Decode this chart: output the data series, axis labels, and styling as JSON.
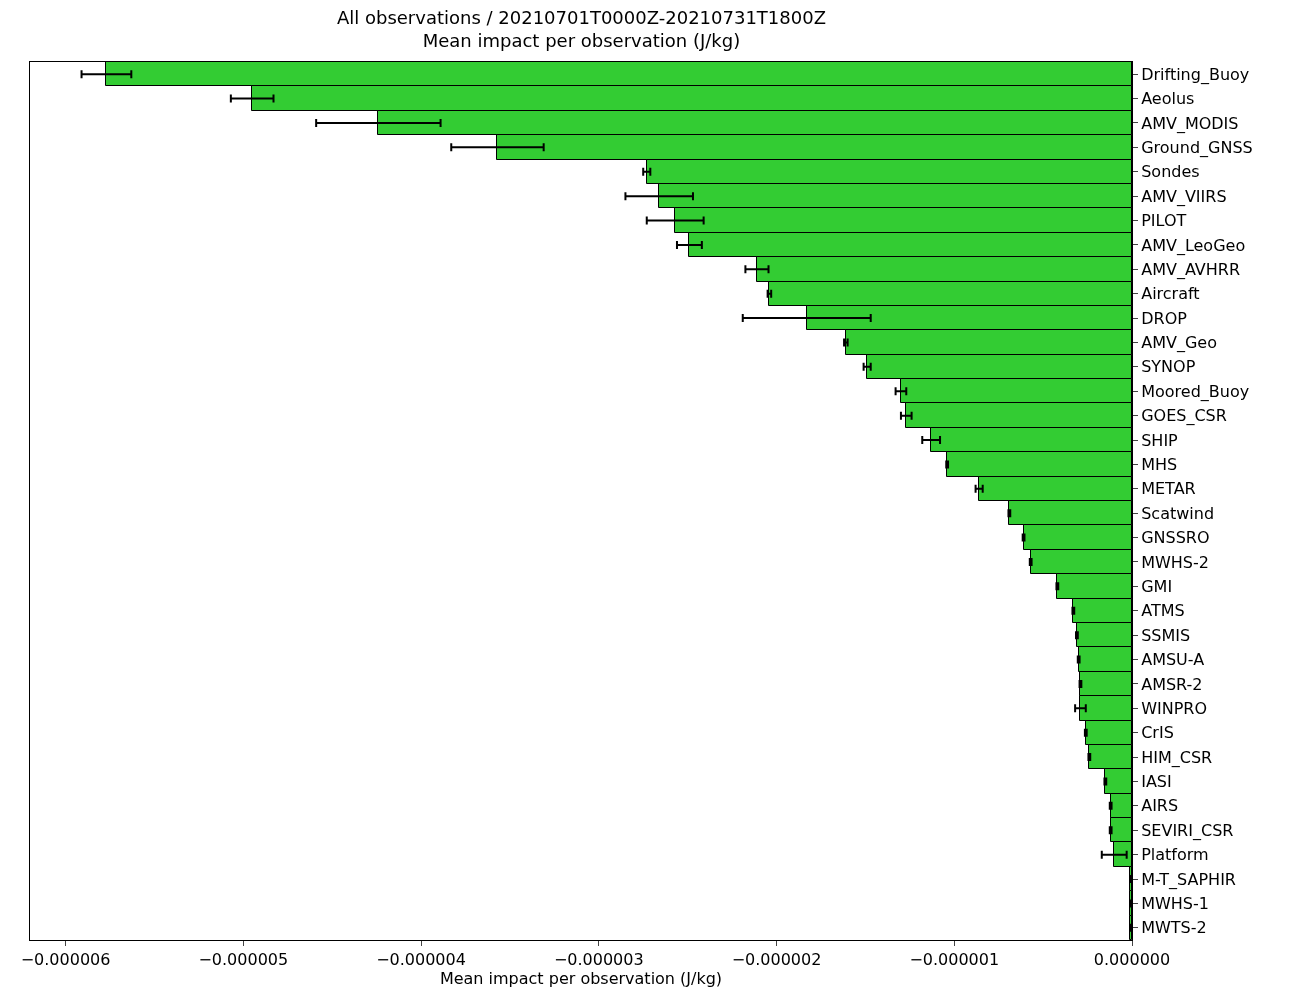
{
  "chart_data": {
    "type": "bar",
    "orientation": "horizontal",
    "title": "All observations / 20210701T0000Z-20210731T1800Z\nMean impact per observation (J/kg)",
    "xlabel": "Mean impact per observation (J/kg)",
    "categories": [
      "Drifting_Buoy",
      "Aeolus",
      "AMV_MODIS",
      "Ground_GNSS",
      "Sondes",
      "AMV_VIIRS",
      "PILOT",
      "AMV_LeoGeo",
      "AMV_AVHRR",
      "Aircraft",
      "DROP",
      "AMV_Geo",
      "SYNOP",
      "Moored_Buoy",
      "GOES_CSR",
      "SHIP",
      "MHS",
      "METAR",
      "Scatwind",
      "GNSSRO",
      "MWHS-2",
      "GMI",
      "ATMS",
      "SSMIS",
      "AMSU-A",
      "AMSR-2",
      "WINPRO",
      "CrIS",
      "HIM_CSR",
      "IASI",
      "AIRS",
      "SEVIRI_CSR",
      "Platform",
      "M-T_SAPHIR",
      "MWHS-1",
      "MWTS-2"
    ],
    "values": [
      -5.77e-06,
      -4.95e-06,
      -4.24e-06,
      -3.57e-06,
      -2.73e-06,
      -2.66e-06,
      -2.57e-06,
      -2.49e-06,
      -2.11e-06,
      -2.04e-06,
      -1.83e-06,
      -1.61e-06,
      -1.49e-06,
      -1.3e-06,
      -1.27e-06,
      -1.13e-06,
      -1.04e-06,
      -8.6e-07,
      -6.9e-07,
      -6.1e-07,
      -5.7e-07,
      -4.2e-07,
      -3.3e-07,
      -3.1e-07,
      -3e-07,
      -2.9e-07,
      -2.9e-07,
      -2.6e-07,
      -2.4e-07,
      -1.5e-07,
      -1.2e-07,
      -1.2e-07,
      -1e-07,
      -1e-08,
      -1e-08,
      -1e-08
    ],
    "errors": [
      1.4e-07,
      1.2e-07,
      3.5e-07,
      2.6e-07,
      2e-08,
      1.9e-07,
      1.6e-07,
      7e-08,
      6.5e-08,
      1e-08,
      3.6e-07,
      1e-08,
      2e-08,
      3e-08,
      3e-08,
      5e-08,
      5e-09,
      2e-08,
      5e-09,
      5e-09,
      5e-09,
      5e-09,
      5e-09,
      5e-09,
      5e-09,
      5e-09,
      3e-08,
      5e-09,
      5e-09,
      5e-09,
      5e-09,
      5e-09,
      7e-08,
      null,
      null,
      null
    ],
    "color": "#33cc33",
    "xlim": [
      -6.2e-06,
      0
    ],
    "xticks": [
      {
        "value": -6e-06,
        "label": "−0.000006"
      },
      {
        "value": -5e-06,
        "label": "−0.000005"
      },
      {
        "value": -4e-06,
        "label": "−0.000004"
      },
      {
        "value": -3e-06,
        "label": "−0.000003"
      },
      {
        "value": -2e-06,
        "label": "−0.000002"
      },
      {
        "value": -1e-06,
        "label": "−0.000001"
      },
      {
        "value": 0,
        "label": "0.000000"
      }
    ],
    "legend": false
  }
}
